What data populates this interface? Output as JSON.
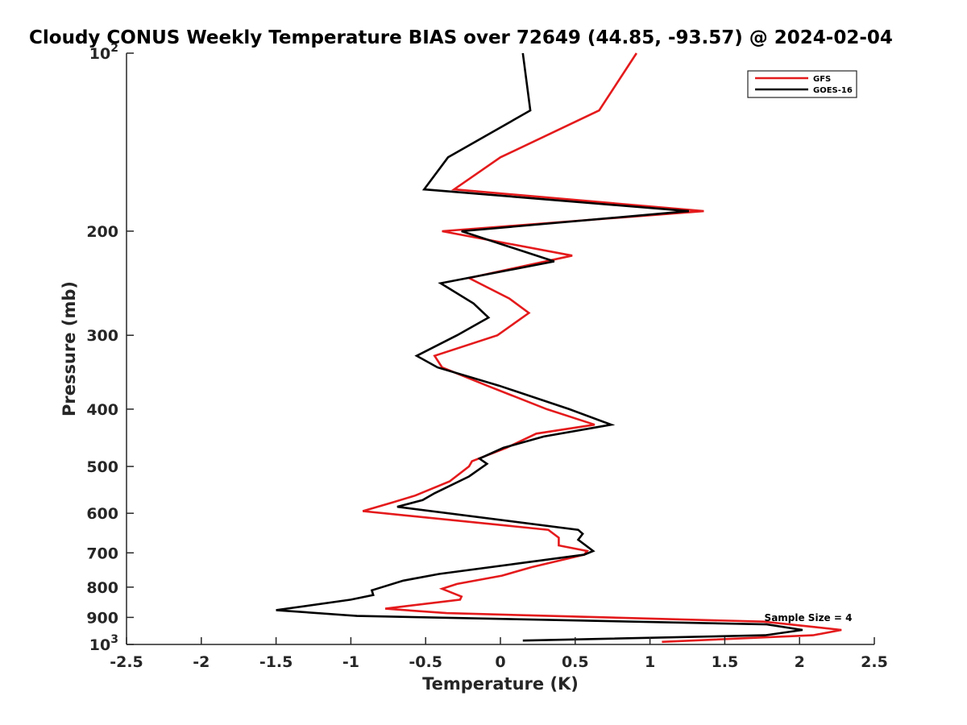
{
  "chart_data": {
    "type": "line",
    "title": "Cloudy CONUS Weekly Temperature BIAS over 72649 (44.85, -93.57) @ 2024-02-04",
    "xlabel": "Temperature (K)",
    "ylabel": "Pressure (mb)",
    "xlim": [
      -2.5,
      2.5
    ],
    "ylim": [
      100,
      1000
    ],
    "y_scale": "log",
    "y_reversed": true,
    "grid": false,
    "legend_position": "top-right",
    "x_ticks": [
      "-2.5",
      "-2",
      "-1.5",
      "-1",
      "-0.5",
      "0",
      "0.5",
      "1",
      "1.5",
      "2",
      "2.5"
    ],
    "x_tick_values": [
      -2.5,
      -2,
      -1.5,
      -1,
      -0.5,
      0,
      0.5,
      1,
      1.5,
      2,
      2.5
    ],
    "y_ticks": [
      {
        "value": 100,
        "base": "10",
        "exp": "2"
      },
      {
        "value": 200,
        "label": "200"
      },
      {
        "value": 300,
        "label": "300"
      },
      {
        "value": 400,
        "label": "400"
      },
      {
        "value": 500,
        "label": "500"
      },
      {
        "value": 600,
        "label": "600"
      },
      {
        "value": 700,
        "label": "700"
      },
      {
        "value": 800,
        "label": "800"
      },
      {
        "value": 900,
        "label": "900"
      },
      {
        "value": 1000,
        "base": "10",
        "exp": "3"
      }
    ],
    "annotation": "Sample Size = 4",
    "series": [
      {
        "name": "GFS",
        "color": "#e41a1c",
        "points": [
          [
            0.91,
            100
          ],
          [
            0.66,
            125
          ],
          [
            0.0,
            150
          ],
          [
            -0.31,
            170
          ],
          [
            1.36,
            185
          ],
          [
            -0.39,
            200
          ],
          [
            0.48,
            220
          ],
          [
            -0.21,
            240
          ],
          [
            0.06,
            260
          ],
          [
            0.19,
            275
          ],
          [
            -0.02,
            300
          ],
          [
            -0.44,
            325
          ],
          [
            -0.39,
            340
          ],
          [
            -0.09,
            365
          ],
          [
            0.31,
            400
          ],
          [
            0.63,
            425
          ],
          [
            0.24,
            440
          ],
          [
            0.04,
            465
          ],
          [
            -0.19,
            490
          ],
          [
            -0.21,
            500
          ],
          [
            -0.34,
            530
          ],
          [
            -0.57,
            560
          ],
          [
            -0.72,
            575
          ],
          [
            -0.92,
            595
          ],
          [
            0.32,
            640
          ],
          [
            0.39,
            660
          ],
          [
            0.39,
            680
          ],
          [
            0.58,
            695
          ],
          [
            0.56,
            705
          ],
          [
            0.21,
            740
          ],
          [
            0.01,
            765
          ],
          [
            -0.29,
            790
          ],
          [
            -0.39,
            805
          ],
          [
            -0.26,
            830
          ],
          [
            -0.27,
            840
          ],
          [
            -0.77,
            870
          ],
          [
            -0.36,
            885
          ],
          [
            1.76,
            915
          ],
          [
            2.11,
            935
          ],
          [
            2.28,
            945
          ],
          [
            2.09,
            965
          ],
          [
            1.08,
            990
          ]
        ]
      },
      {
        "name": "GOES-16",
        "color": "#000000",
        "points": [
          [
            0.15,
            100
          ],
          [
            0.2,
            125
          ],
          [
            -0.35,
            150
          ],
          [
            -0.51,
            170
          ],
          [
            1.26,
            185
          ],
          [
            -0.26,
            200
          ],
          [
            0.36,
            225
          ],
          [
            -0.4,
            245
          ],
          [
            -0.18,
            265
          ],
          [
            -0.08,
            280
          ],
          [
            -0.29,
            300
          ],
          [
            -0.56,
            325
          ],
          [
            -0.42,
            340
          ],
          [
            -0.01,
            365
          ],
          [
            0.46,
            400
          ],
          [
            0.74,
            425
          ],
          [
            0.29,
            445
          ],
          [
            0.02,
            465
          ],
          [
            -0.14,
            485
          ],
          [
            -0.09,
            495
          ],
          [
            -0.21,
            520
          ],
          [
            -0.44,
            555
          ],
          [
            -0.52,
            570
          ],
          [
            -0.69,
            585
          ],
          [
            0.52,
            640
          ],
          [
            0.55,
            650
          ],
          [
            0.52,
            665
          ],
          [
            0.62,
            695
          ],
          [
            0.56,
            705
          ],
          [
            0.11,
            730
          ],
          [
            -0.41,
            760
          ],
          [
            -0.65,
            780
          ],
          [
            -0.86,
            810
          ],
          [
            -0.85,
            825
          ],
          [
            -1.0,
            840
          ],
          [
            -1.5,
            875
          ],
          [
            -0.96,
            895
          ],
          [
            1.78,
            925
          ],
          [
            2.02,
            945
          ],
          [
            1.77,
            965
          ],
          [
            0.15,
            985
          ]
        ]
      }
    ]
  }
}
